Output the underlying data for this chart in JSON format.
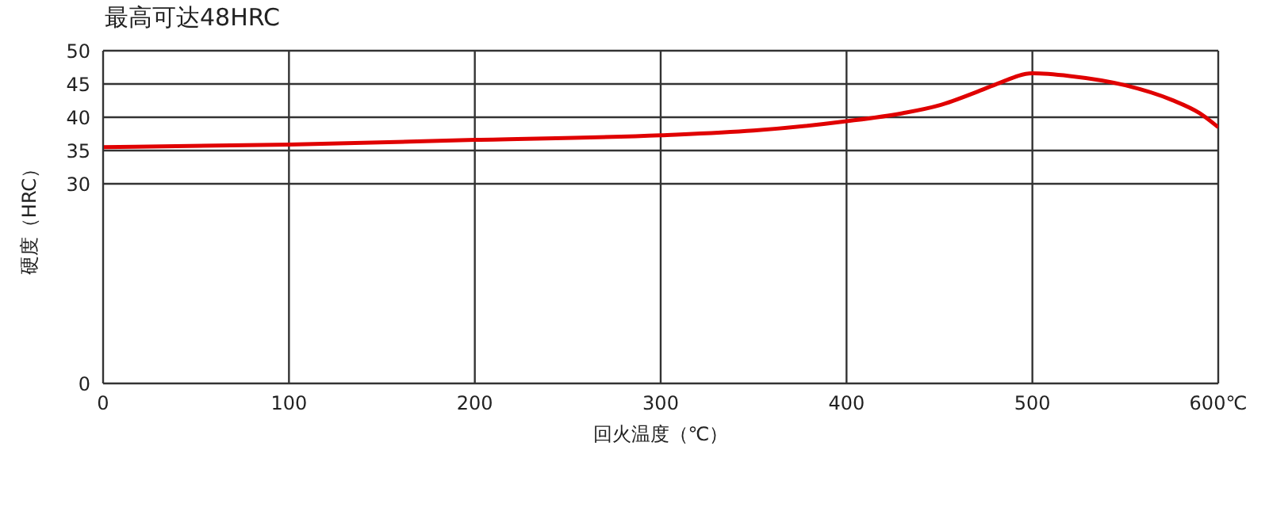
{
  "chart_data": {
    "type": "line",
    "title": "最高可达48HRC",
    "xlabel": "回火温度（℃）",
    "ylabel": "硬度（HRC）",
    "x": [
      0,
      100,
      200,
      300,
      350,
      400,
      430,
      450,
      470,
      480,
      500,
      520,
      550,
      575,
      590,
      600
    ],
    "series": [
      {
        "color": "#e00000",
        "values": [
          35.5,
          35.9,
          36.6,
          37.3,
          38.0,
          39.4,
          40.6,
          41.8,
          43.8,
          44.9,
          46.6,
          46.2,
          44.8,
          42.6,
          40.6,
          38.5
        ]
      }
    ],
    "xlim": [
      0,
      600
    ],
    "xticks": [
      0,
      100,
      200,
      300,
      400,
      500,
      {
        "value": 600,
        "label": "600℃"
      }
    ],
    "ylim": [
      0,
      50
    ],
    "yticks": [
      0,
      30,
      35,
      40,
      45,
      50
    ],
    "grid": true,
    "legend": false,
    "marker": "none",
    "line_style": "solid"
  }
}
